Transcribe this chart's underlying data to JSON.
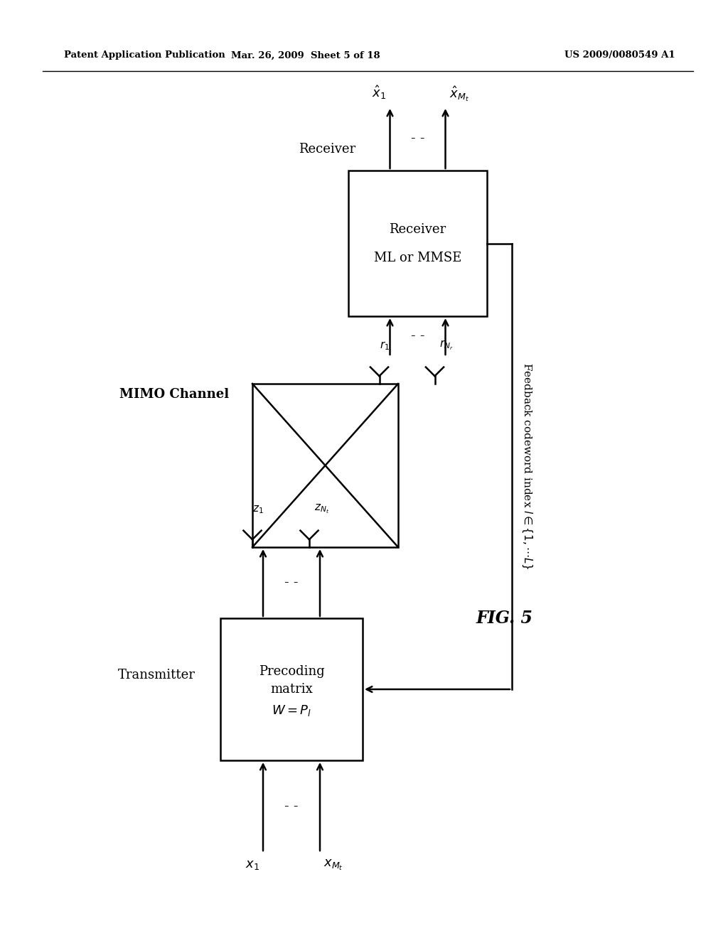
{
  "header_left": "Patent Application Publication",
  "header_center": "Mar. 26, 2009  Sheet 5 of 18",
  "header_right": "US 2009/0080549 A1",
  "fig_label": "FIG. 5",
  "transmitter_label": "Transmitter",
  "receiver_label": "Receiver",
  "mimo_label": "MIMO Channel",
  "feedback_label": "Feedback codeword index $l \\in \\{1,\\cdots L\\}$",
  "box1_line1": "Precoding",
  "box1_line2": "matrix",
  "box1_line3": "$W=P_l$",
  "box2_line1": "Receiver",
  "box2_line2": "ML or MMSE",
  "bg_color": "#ffffff",
  "line_color": "#000000"
}
